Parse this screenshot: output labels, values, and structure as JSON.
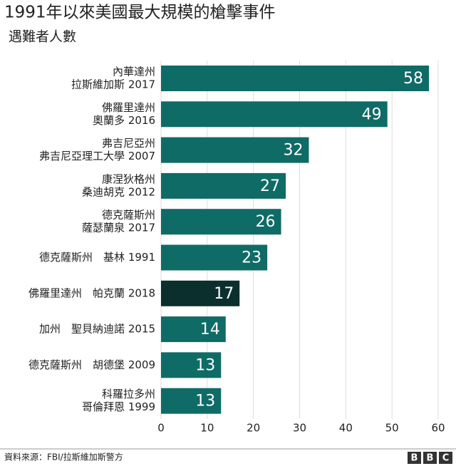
{
  "chart_data": {
    "type": "barh",
    "title": "1991年以來美國最大規模的槍擊事件",
    "subtitle": "遇難者人數",
    "categories": [
      [
        "內華達州",
        "拉斯維加斯 2017"
      ],
      [
        "佛羅里達州",
        "奧蘭多  2016"
      ],
      [
        "弗吉尼亞州",
        "弗吉尼亞理工大學  2007"
      ],
      [
        "康涅狄格州",
        "桑迪胡克  2012"
      ],
      [
        "德克薩斯州",
        "薩瑟蘭泉 2017"
      ],
      [
        "德克薩斯州　基林 1991"
      ],
      [
        "佛羅里達州　帕克蘭 2018"
      ],
      [
        "加州　聖貝納迪諾 2015"
      ],
      [
        "德克薩斯州　胡德堡 2009"
      ],
      [
        "科羅拉多州",
        "哥倫拜恩 1999"
      ]
    ],
    "values": [
      58,
      49,
      32,
      27,
      26,
      23,
      17,
      14,
      13,
      13
    ],
    "colors": [
      "#0f6b66",
      "#0f6b66",
      "#0f6b66",
      "#0f6b66",
      "#0f6b66",
      "#0f6b66",
      "#0b2f2d",
      "#0f6b66",
      "#0f6b66",
      "#0f6b66"
    ],
    "xlim": [
      0,
      60
    ],
    "xticks": [
      0,
      10,
      20,
      30,
      40,
      50,
      60
    ],
    "grid": true,
    "source": "資料來源：FBI/拉斯維加斯警方",
    "logo": [
      "B",
      "B",
      "C"
    ]
  }
}
